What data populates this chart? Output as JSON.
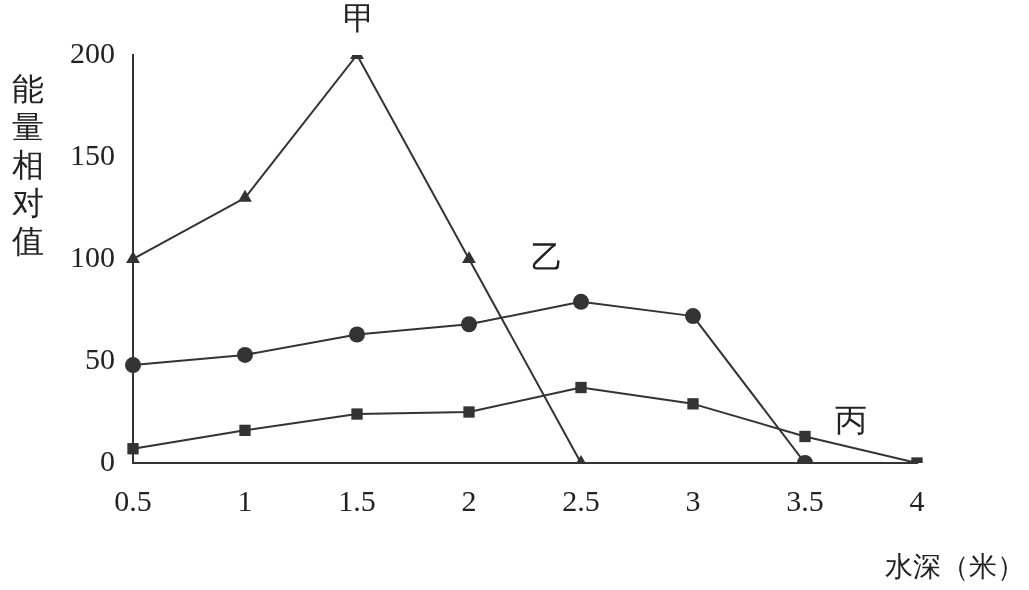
{
  "chart_data": {
    "type": "line",
    "xlabel": "水深（米）",
    "ylabel": "能量相对值",
    "categories": [
      "0.5",
      "1",
      "1.5",
      "2",
      "2.5",
      "3",
      "3.5",
      "4"
    ],
    "series": [
      {
        "name": "甲",
        "color": "#333333",
        "marker": "triangle",
        "values": [
          100,
          130,
          200,
          100,
          0,
          null,
          null,
          null
        ]
      },
      {
        "name": "乙",
        "color": "#333333",
        "marker": "circle",
        "values": [
          48,
          53,
          63,
          68,
          79,
          72,
          0,
          null
        ]
      },
      {
        "name": "丙",
        "color": "#333333",
        "marker": "square",
        "values": [
          7,
          16,
          24,
          25,
          37,
          29,
          13,
          0
        ]
      }
    ],
    "ylim": [
      0,
      200
    ],
    "yticks": [
      0,
      50,
      100,
      150,
      200
    ],
    "grid": false,
    "legend": false,
    "line_style": "solid"
  }
}
